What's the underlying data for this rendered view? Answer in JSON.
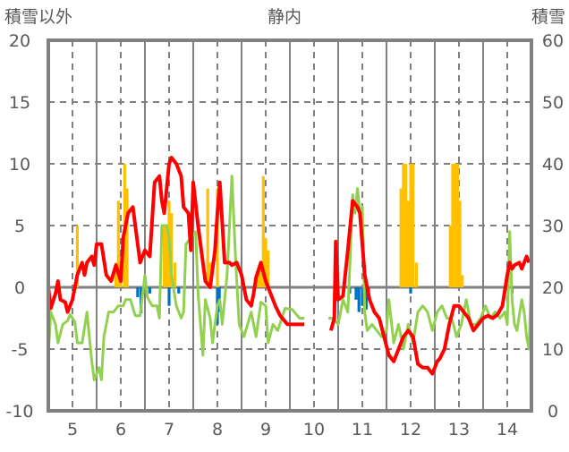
{
  "chart_data": {
    "type": "line",
    "title": "静内",
    "ylabel_left": "積雪以外",
    "ylabel_right": "積雪",
    "ylim_left": [
      -10,
      20
    ],
    "ylim_right": [
      0,
      60
    ],
    "yticks_left": [
      -10,
      -5,
      0,
      5,
      10,
      15,
      20
    ],
    "yticks_right": [
      0,
      10,
      20,
      30,
      40,
      50,
      60
    ],
    "xlim": [
      4.5,
      14.5
    ],
    "xticks": [
      5,
      6,
      7,
      8,
      9,
      10,
      11,
      12,
      13,
      14
    ],
    "grid": true,
    "colors": {
      "red": "#ff0000",
      "green": "#92d050",
      "orange": "#ffc000",
      "blue": "#0070c0",
      "purple": "#7030a0",
      "axis": "#808080"
    },
    "series": [
      {
        "name": "red",
        "color": "#ff0000",
        "segments": [
          [
            [
              4.5,
              0
            ],
            [
              4.55,
              -1.7
            ],
            [
              4.65,
              -0.5
            ],
            [
              4.7,
              0.5
            ],
            [
              4.75,
              -1
            ],
            [
              4.85,
              -1.2
            ],
            [
              4.9,
              -2
            ],
            [
              5.0,
              -1
            ],
            [
              5.05,
              0
            ],
            [
              5.1,
              1
            ],
            [
              5.2,
              2
            ],
            [
              5.25,
              1
            ],
            [
              5.3,
              2
            ],
            [
              5.4,
              2.5
            ],
            [
              5.45,
              1.8
            ],
            [
              5.5,
              3.5
            ],
            [
              5.6,
              3.5
            ],
            [
              5.7,
              1
            ],
            [
              5.8,
              0.5
            ],
            [
              5.9,
              1.8
            ],
            [
              6.0,
              0.5
            ],
            [
              6.05,
              4
            ],
            [
              6.15,
              6
            ],
            [
              6.25,
              6.5
            ],
            [
              6.3,
              5
            ],
            [
              6.4,
              2
            ],
            [
              6.5,
              3
            ],
            [
              6.6,
              2.5
            ],
            [
              6.7,
              8.5
            ],
            [
              6.8,
              9
            ],
            [
              6.85,
              7
            ],
            [
              6.9,
              6
            ],
            [
              7.0,
              10
            ],
            [
              7.05,
              10.5
            ],
            [
              7.15,
              10
            ],
            [
              7.25,
              9
            ],
            [
              7.3,
              6.5
            ],
            [
              7.4,
              6
            ],
            [
              7.45,
              3
            ],
            [
              7.5,
              8.5
            ],
            [
              7.6,
              5
            ],
            [
              7.7,
              2
            ],
            [
              7.75,
              0.5
            ],
            [
              7.85,
              0
            ],
            [
              7.95,
              3
            ],
            [
              8.0,
              6
            ],
            [
              8.05,
              8.5
            ],
            [
              8.15,
              2
            ],
            [
              8.25,
              2
            ],
            [
              8.3,
              1.8
            ],
            [
              8.4,
              2
            ],
            [
              8.5,
              1
            ],
            [
              8.6,
              -1
            ],
            [
              8.7,
              -1.5
            ],
            [
              8.75,
              -0.5
            ],
            [
              8.8,
              0.8
            ],
            [
              8.9,
              2
            ],
            [
              9.0,
              0.5
            ],
            [
              9.1,
              -0.5
            ],
            [
              9.2,
              -1.5
            ],
            [
              9.3,
              -2.3
            ],
            [
              9.45,
              -3
            ],
            [
              9.6,
              -3
            ],
            [
              9.8,
              -3
            ]
          ],
          [
            [
              10.35,
              -3.5
            ],
            [
              10.42,
              -2.5
            ],
            [
              10.45,
              3.7
            ],
            [
              10.5,
              -1
            ],
            [
              10.6,
              -0.7
            ],
            [
              10.7,
              3
            ],
            [
              10.8,
              7
            ],
            [
              10.9,
              6.5
            ],
            [
              10.95,
              6
            ],
            [
              11.05,
              1
            ],
            [
              11.15,
              -1
            ],
            [
              11.25,
              -2
            ],
            [
              11.35,
              -2.5
            ],
            [
              11.45,
              -4
            ],
            [
              11.55,
              -5.5
            ],
            [
              11.65,
              -6
            ],
            [
              11.75,
              -5
            ],
            [
              11.85,
              -4
            ],
            [
              11.95,
              -3.5
            ],
            [
              12.05,
              -4
            ],
            [
              12.15,
              -6.2
            ],
            [
              12.25,
              -6.5
            ],
            [
              12.35,
              -6.5
            ],
            [
              12.45,
              -7
            ],
            [
              12.55,
              -6
            ],
            [
              12.6,
              -5.8
            ],
            [
              12.7,
              -5
            ],
            [
              12.8,
              -3
            ],
            [
              12.9,
              -1.5
            ],
            [
              13.0,
              -1.5
            ],
            [
              13.1,
              -2
            ],
            [
              13.2,
              -2.5
            ],
            [
              13.3,
              -3.5
            ],
            [
              13.4,
              -3
            ],
            [
              13.5,
              -2.5
            ],
            [
              13.6,
              -2.3
            ],
            [
              13.7,
              -2.5
            ],
            [
              13.8,
              -2.2
            ],
            [
              13.9,
              -1.5
            ],
            [
              14.0,
              1
            ],
            [
              14.05,
              2
            ],
            [
              14.1,
              1.5
            ],
            [
              14.15,
              1.8
            ],
            [
              14.25,
              2
            ],
            [
              14.3,
              1.5
            ],
            [
              14.4,
              2.5
            ],
            [
              14.45,
              2
            ]
          ]
        ]
      },
      {
        "name": "green",
        "color": "#92d050",
        "segments": [
          [
            [
              4.5,
              -5.5
            ],
            [
              4.55,
              -2
            ],
            [
              4.65,
              -3
            ],
            [
              4.7,
              -4.5
            ],
            [
              4.8,
              -3
            ],
            [
              4.9,
              -2.7
            ],
            [
              4.95,
              -2.2
            ],
            [
              5.05,
              -2.8
            ],
            [
              5.1,
              -4.5
            ],
            [
              5.2,
              -4.5
            ],
            [
              5.3,
              -2
            ],
            [
              5.4,
              -6
            ],
            [
              5.45,
              -7.5
            ],
            [
              5.55,
              -6.5
            ],
            [
              5.6,
              -7.5
            ],
            [
              5.65,
              -4
            ],
            [
              5.75,
              -2
            ],
            [
              5.85,
              -2
            ],
            [
              5.95,
              -1.5
            ],
            [
              6.05,
              -1.5
            ],
            [
              6.1,
              -1
            ],
            [
              6.2,
              -1
            ],
            [
              6.3,
              -2.3
            ],
            [
              6.4,
              -2.3
            ],
            [
              6.5,
              1
            ],
            [
              6.55,
              -0.8
            ],
            [
              6.65,
              -1.5
            ],
            [
              6.75,
              -1.5
            ],
            [
              6.8,
              -2.5
            ],
            [
              6.85,
              5
            ],
            [
              6.95,
              5
            ],
            [
              7.0,
              4
            ],
            [
              7.05,
              1
            ],
            [
              7.15,
              -1.5
            ],
            [
              7.25,
              -2.5
            ],
            [
              7.3,
              -2
            ],
            [
              7.35,
              3.5
            ],
            [
              7.45,
              4
            ],
            [
              7.55,
              4.5
            ],
            [
              7.6,
              -0.5
            ],
            [
              7.7,
              -5.5
            ],
            [
              7.75,
              -1
            ],
            [
              7.85,
              -2.5
            ],
            [
              7.9,
              -4.5
            ],
            [
              8.0,
              -1.5
            ],
            [
              8.05,
              -1
            ],
            [
              8.1,
              -3
            ],
            [
              8.2,
              1
            ],
            [
              8.3,
              9
            ],
            [
              8.38,
              2
            ],
            [
              8.45,
              -3
            ],
            [
              8.55,
              -4
            ],
            [
              8.7,
              -2
            ],
            [
              8.8,
              -4
            ],
            [
              8.9,
              -1.2
            ],
            [
              9.0,
              -1.5
            ],
            [
              9.05,
              -4.5
            ],
            [
              9.15,
              -3
            ],
            [
              9.25,
              -3.5
            ],
            [
              9.4,
              -1.7
            ],
            [
              9.55,
              -1.8
            ],
            [
              9.7,
              -2.5
            ],
            [
              9.8,
              -2.5
            ]
          ],
          [
            [
              10.3,
              -2.5
            ],
            [
              10.4,
              -2.5
            ],
            [
              10.5,
              -3
            ],
            [
              10.6,
              -1
            ],
            [
              10.7,
              -2
            ],
            [
              10.75,
              2.5
            ],
            [
              10.8,
              7.5
            ],
            [
              10.85,
              6
            ],
            [
              10.9,
              8
            ],
            [
              10.95,
              6
            ],
            [
              11.0,
              6.5
            ],
            [
              11.05,
              -2
            ],
            [
              11.1,
              -3.5
            ],
            [
              11.2,
              -3
            ],
            [
              11.3,
              -3.5
            ],
            [
              11.4,
              -4
            ],
            [
              11.5,
              -3.5
            ],
            [
              11.55,
              -1
            ],
            [
              11.65,
              -4.5
            ],
            [
              11.75,
              -3
            ],
            [
              11.85,
              -5
            ],
            [
              11.95,
              -3
            ],
            [
              12.05,
              -4.5
            ],
            [
              12.15,
              -2
            ],
            [
              12.25,
              -1.5
            ],
            [
              12.35,
              -2
            ],
            [
              12.45,
              -3.5
            ],
            [
              12.55,
              -2
            ],
            [
              12.65,
              -1.5
            ],
            [
              12.75,
              -2.5
            ],
            [
              12.85,
              -2.5
            ],
            [
              12.95,
              -4
            ],
            [
              13.05,
              -3
            ],
            [
              13.15,
              -1
            ],
            [
              13.25,
              -3
            ],
            [
              13.35,
              -3
            ],
            [
              13.45,
              -2.5
            ],
            [
              13.55,
              -1.5
            ],
            [
              13.65,
              -2.5
            ],
            [
              13.75,
              -2
            ],
            [
              13.85,
              -2.5
            ],
            [
              13.95,
              -2
            ],
            [
              14.0,
              -3
            ],
            [
              14.05,
              4.5
            ],
            [
              14.1,
              -1
            ],
            [
              14.15,
              -3
            ],
            [
              14.2,
              -3.5
            ],
            [
              14.3,
              -1
            ],
            [
              14.35,
              -2
            ],
            [
              14.4,
              -4
            ],
            [
              14.45,
              -5
            ],
            [
              14.5,
              1
            ]
          ]
        ]
      },
      {
        "name": "purple",
        "color": "#7030a0",
        "segments": [
          [
            [
              4.5,
              -10
            ],
            [
              9.8,
              -10
            ]
          ],
          [
            [
              10.3,
              -10
            ],
            [
              14.45,
              -10
            ]
          ]
        ]
      }
    ],
    "bars": [
      {
        "name": "orange",
        "color": "#ffc000",
        "points": [
          [
            5.1,
            5
          ],
          [
            5.9,
            2
          ],
          [
            5.95,
            7
          ],
          [
            6.0,
            2
          ],
          [
            6.08,
            10
          ],
          [
            6.13,
            8
          ],
          [
            6.9,
            5
          ],
          [
            6.95,
            5
          ],
          [
            7.0,
            7
          ],
          [
            7.05,
            6
          ],
          [
            7.12,
            2
          ],
          [
            7.8,
            8
          ],
          [
            7.85,
            2
          ],
          [
            8.0,
            8
          ],
          [
            8.85,
            1.5
          ],
          [
            8.9,
            2
          ],
          [
            8.95,
            9
          ],
          [
            9.0,
            4
          ],
          [
            9.05,
            3
          ],
          [
            11.8,
            8
          ],
          [
            11.85,
            10
          ],
          [
            11.9,
            10
          ],
          [
            11.95,
            7
          ],
          [
            12.0,
            10
          ],
          [
            12.05,
            10
          ],
          [
            12.12,
            2
          ],
          [
            12.82,
            5
          ],
          [
            12.87,
            10
          ],
          [
            12.92,
            10
          ],
          [
            12.97,
            10
          ],
          [
            13.02,
            7
          ],
          [
            13.07,
            1
          ]
        ]
      },
      {
        "name": "blue",
        "color": "#0070c0",
        "points": [
          [
            6.35,
            -0.8
          ],
          [
            6.42,
            -2.1
          ],
          [
            6.6,
            -0.5
          ],
          [
            7.0,
            -1.5
          ],
          [
            7.2,
            -0.5
          ],
          [
            8.0,
            -3
          ],
          [
            8.04,
            -2
          ],
          [
            10.74,
            -0.5
          ],
          [
            10.87,
            -1
          ],
          [
            10.93,
            -2
          ],
          [
            11.0,
            -1.5
          ],
          [
            11.08,
            -1.8
          ],
          [
            11.13,
            -1
          ],
          [
            12.0,
            -0.5
          ],
          [
            14.1,
            -0.5
          ]
        ]
      }
    ]
  }
}
